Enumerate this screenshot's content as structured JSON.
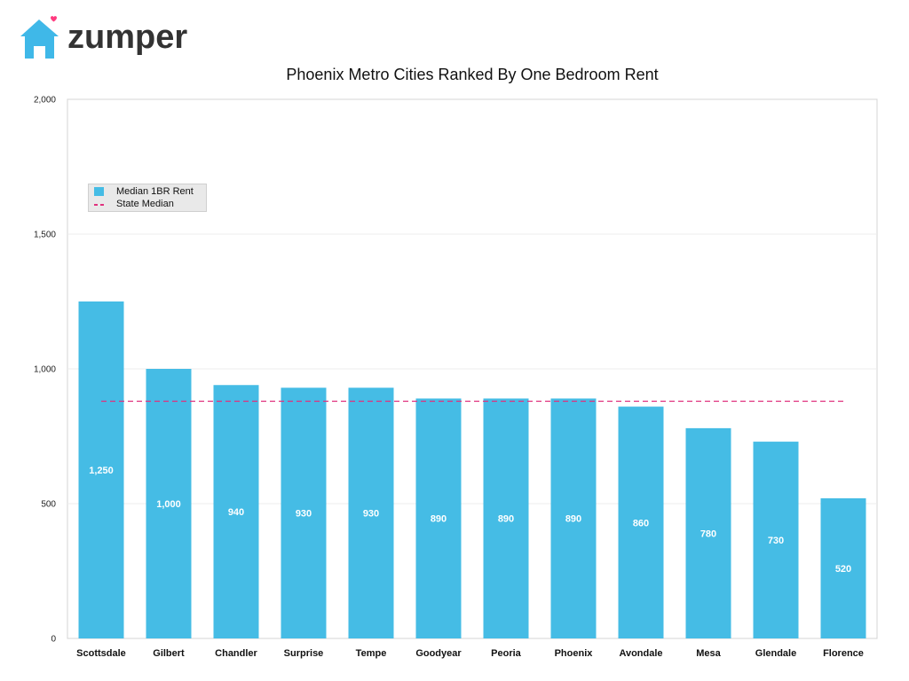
{
  "brand": {
    "name": "zumper",
    "house_color": "#3fb8e8",
    "heart_color": "#ff3b7f"
  },
  "chart_data": {
    "type": "bar",
    "title": "Phoenix Metro Cities Ranked By One Bedroom Rent",
    "categories": [
      "Scottsdale",
      "Gilbert",
      "Chandler",
      "Surprise",
      "Tempe",
      "Goodyear",
      "Peoria",
      "Phoenix",
      "Avondale",
      "Mesa",
      "Glendale",
      "Florence"
    ],
    "series": [
      {
        "name": "Median 1BR Rent",
        "values": [
          1250,
          1000,
          940,
          930,
          930,
          890,
          890,
          890,
          860,
          780,
          730,
          520
        ],
        "value_labels": [
          "1,250",
          "1,000",
          "940",
          "930",
          "930",
          "890",
          "890",
          "890",
          "860",
          "780",
          "730",
          "520"
        ],
        "color": "#45bce5"
      }
    ],
    "reference_line": {
      "name": "State Median",
      "value": 880,
      "style": "dashed",
      "color": "#e0317e"
    },
    "ylim": [
      0,
      2000
    ],
    "yticks": [
      0,
      500,
      1000,
      1500,
      2000
    ],
    "ytick_labels": [
      "0",
      "500",
      "1,000",
      "1,500",
      "2,000"
    ],
    "xlabel": "",
    "ylabel": "",
    "grid": true,
    "legend_position": "upper-left"
  }
}
